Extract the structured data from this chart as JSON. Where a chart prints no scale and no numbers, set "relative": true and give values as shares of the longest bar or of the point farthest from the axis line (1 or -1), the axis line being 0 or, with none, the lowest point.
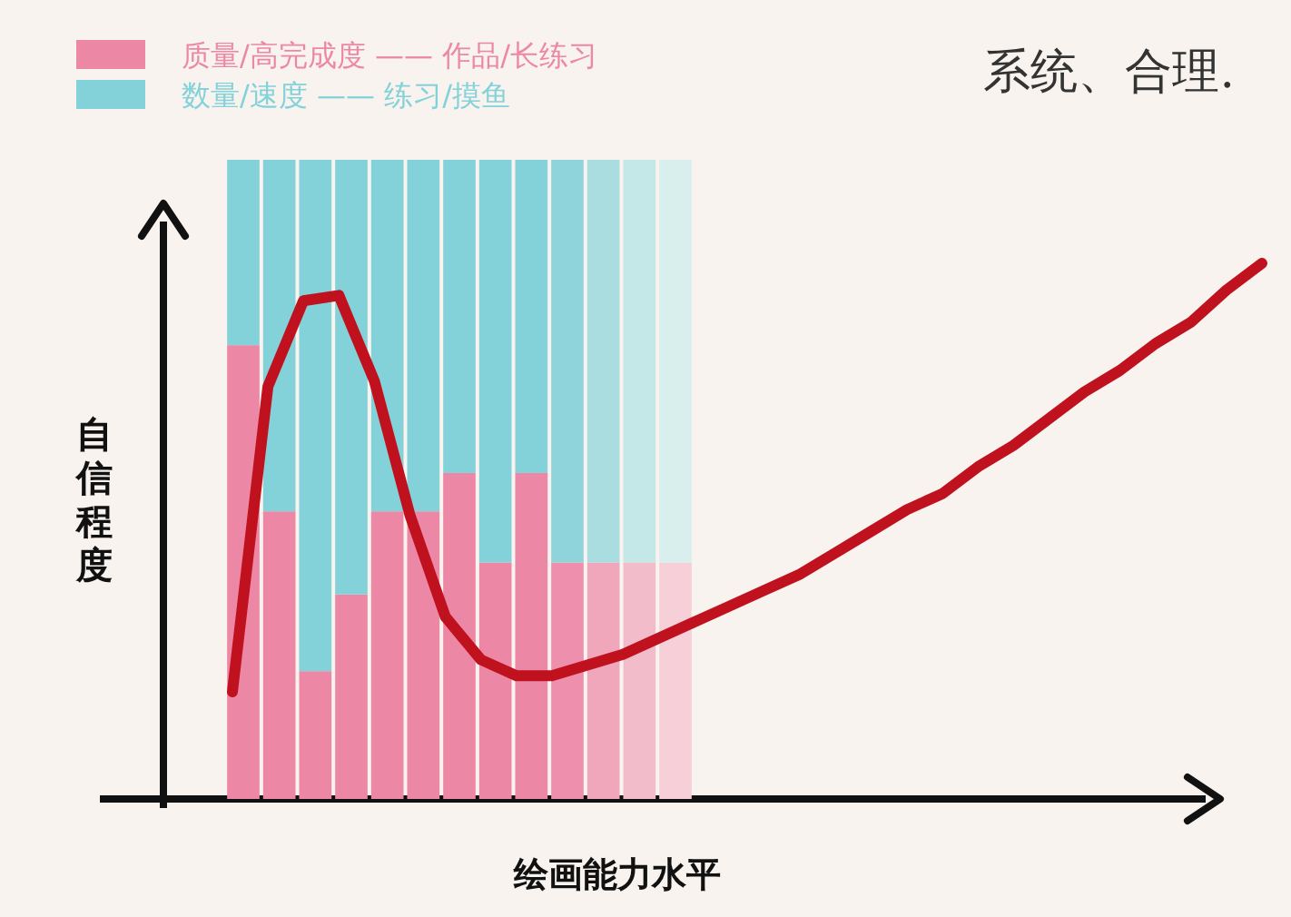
{
  "chart_data": [
    {
      "type": "bar",
      "stacked": true,
      "relative": true,
      "legend": "top left",
      "xlabel": "绘画能力水平",
      "ylabel": "自信程度",
      "annotations": [
        "系统、合理."
      ],
      "categories": [
        null,
        null,
        null,
        null,
        null,
        null,
        null,
        null,
        null,
        null,
        null,
        null,
        null
      ],
      "series": [
        {
          "name": "质量/高完成度 —— 作品/长练习",
          "color": "#ec88a6",
          "colors": [
            "#ec88a6",
            "#ec88a6",
            "#ec88a6",
            "#ec88a6",
            "#ec88a6",
            "#ec88a6",
            "#ec88a6",
            "#ec88a6",
            "#ec88a6",
            "#ee90ad",
            "#f0a7bc",
            "#f3bccb",
            "#f6cfd9"
          ],
          "values": [
            0.71,
            0.45,
            0.2,
            0.32,
            0.45,
            0.45,
            0.51,
            0.37,
            0.51,
            0.37,
            0.37,
            0.37,
            0.37
          ]
        },
        {
          "name": "数量/速度 —— 练习/摸鱼",
          "color": "#84d2d9",
          "colors": [
            "#84d2d9",
            "#84d2d9",
            "#84d2d9",
            "#84d2d9",
            "#84d2d9",
            "#84d2d9",
            "#84d2d9",
            "#84d2d9",
            "#84d2d9",
            "#8fd4da",
            "#a9dde0",
            "#c4e7e8",
            "#d9efee"
          ],
          "values": [
            0.29,
            0.55,
            0.8,
            0.68,
            0.55,
            0.55,
            0.49,
            0.63,
            0.49,
            0.63,
            0.63,
            0.63,
            0.63
          ]
        }
      ]
    },
    {
      "type": "line",
      "relative": true,
      "categories": [
        null,
        null,
        null,
        null,
        null,
        null,
        null,
        null,
        null,
        null,
        null,
        null,
        null,
        null,
        null,
        null,
        null,
        null,
        null,
        null,
        null,
        null,
        null,
        null,
        null,
        null,
        null,
        null,
        null,
        null
      ],
      "series": [
        {
          "color": "#c0121e",
          "values": [
            0.2,
            0.77,
            0.93,
            0.94,
            0.78,
            0.53,
            0.34,
            0.26,
            0.23,
            0.23,
            0.25,
            0.27,
            0.3,
            0.33,
            0.36,
            0.39,
            0.42,
            0.46,
            0.5,
            0.54,
            0.57,
            0.62,
            0.66,
            0.71,
            0.76,
            0.8,
            0.85,
            0.89,
            0.95,
            1
          ]
        }
      ]
    }
  ]
}
